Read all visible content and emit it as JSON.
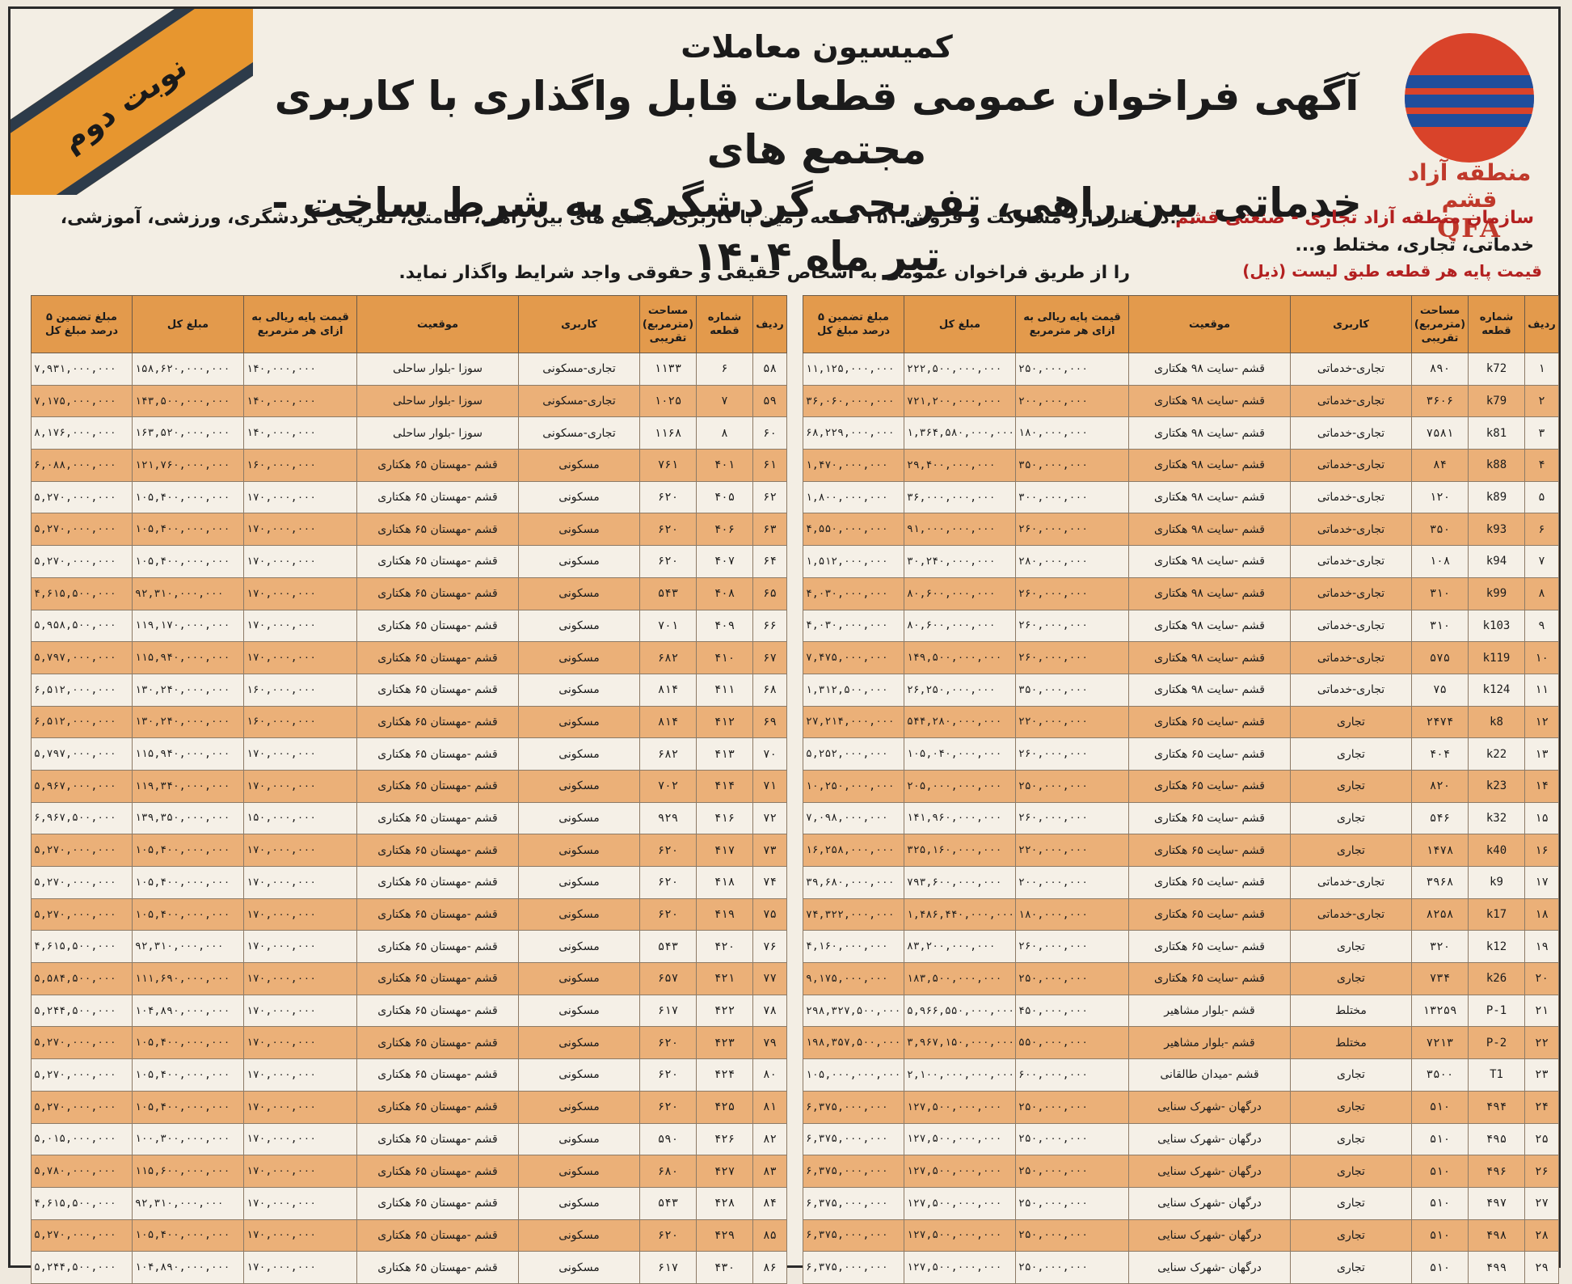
{
  "ribbon_text": "نوبت دوم",
  "logo": {
    "fa": "منطقه آزاد قشم",
    "en": "QFA"
  },
  "header": {
    "commission": "کمیسیون معاملات",
    "title_line1": "آگهی فراخوان عمومی قطعات قابل واگذاری با کاربری مجتمع های",
    "title_line2": "خدماتی بین راهی، تفریحی گردشگری به شرط ساخت - تیر ماه ۱۴۰۴"
  },
  "intro": {
    "org": "سازمان منطقه آزاد تجاری - صنعتی قشم",
    "line1_rest": " در نظر دارد مشارکت و فروش ۳۵۱ قطعه زمین با کاربری مجتمع های بین راهی، اقامتی، تفریحی گردشگری، ورزشی، آموزشی، خدماتی، تجاری، مختلط و...",
    "line2": "را از طریق فراخوان عمومی به اشخاص حقیقی و حقوقی واجد شرایط واگذار نماید."
  },
  "price_note": "قیمت پایه هر قطعه طبق لیست (ذیل)",
  "columns": [
    "ردیف",
    "شماره قطعه",
    "مساحت (مترمربع) تقریبی",
    "کاربری",
    "موقعیت",
    "قیمت پایه ریالی به ازای هر مترمربع",
    "مبلغ کل",
    "مبلغ تضمین ۵ درصد مبلغ کل"
  ],
  "right_table": [
    [
      "۱",
      "k72",
      "۸۹۰",
      "تجاری-خدماتی",
      "قشم -سایت ۹۸ هکتاری",
      "۲۵۰,۰۰۰,۰۰۰",
      "۲۲۲,۵۰۰,۰۰۰,۰۰۰",
      "۱۱,۱۲۵,۰۰۰,۰۰۰"
    ],
    [
      "۲",
      "k79",
      "۳۶۰۶",
      "تجاری-خدماتی",
      "قشم -سایت ۹۸ هکتاری",
      "۲۰۰,۰۰۰,۰۰۰",
      "۷۲۱,۲۰۰,۰۰۰,۰۰۰",
      "۳۶,۰۶۰,۰۰۰,۰۰۰"
    ],
    [
      "۳",
      "k81",
      "۷۵۸۱",
      "تجاری-خدماتی",
      "قشم -سایت ۹۸ هکتاری",
      "۱۸۰,۰۰۰,۰۰۰",
      "۱,۳۶۴,۵۸۰,۰۰۰,۰۰۰",
      "۶۸,۲۲۹,۰۰۰,۰۰۰"
    ],
    [
      "۴",
      "k88",
      "۸۴",
      "تجاری-خدماتی",
      "قشم -سایت ۹۸ هکتاری",
      "۳۵۰,۰۰۰,۰۰۰",
      "۲۹,۴۰۰,۰۰۰,۰۰۰",
      "۱,۴۷۰,۰۰۰,۰۰۰"
    ],
    [
      "۵",
      "k89",
      "۱۲۰",
      "تجاری-خدماتی",
      "قشم -سایت ۹۸ هکتاری",
      "۳۰۰,۰۰۰,۰۰۰",
      "۳۶,۰۰۰,۰۰۰,۰۰۰",
      "۱,۸۰۰,۰۰۰,۰۰۰"
    ],
    [
      "۶",
      "k93",
      "۳۵۰",
      "تجاری-خدماتی",
      "قشم -سایت ۹۸ هکتاری",
      "۲۶۰,۰۰۰,۰۰۰",
      "۹۱,۰۰۰,۰۰۰,۰۰۰",
      "۴,۵۵۰,۰۰۰,۰۰۰"
    ],
    [
      "۷",
      "k94",
      "۱۰۸",
      "تجاری-خدماتی",
      "قشم -سایت ۹۸ هکتاری",
      "۲۸۰,۰۰۰,۰۰۰",
      "۳۰,۲۴۰,۰۰۰,۰۰۰",
      "۱,۵۱۲,۰۰۰,۰۰۰"
    ],
    [
      "۸",
      "k99",
      "۳۱۰",
      "تجاری-خدماتی",
      "قشم -سایت ۹۸ هکتاری",
      "۲۶۰,۰۰۰,۰۰۰",
      "۸۰,۶۰۰,۰۰۰,۰۰۰",
      "۴,۰۳۰,۰۰۰,۰۰۰"
    ],
    [
      "۹",
      "k103",
      "۳۱۰",
      "تجاری-خدماتی",
      "قشم -سایت ۹۸ هکتاری",
      "۲۶۰,۰۰۰,۰۰۰",
      "۸۰,۶۰۰,۰۰۰,۰۰۰",
      "۴,۰۳۰,۰۰۰,۰۰۰"
    ],
    [
      "۱۰",
      "k119",
      "۵۷۵",
      "تجاری-خدماتی",
      "قشم -سایت ۹۸ هکتاری",
      "۲۶۰,۰۰۰,۰۰۰",
      "۱۴۹,۵۰۰,۰۰۰,۰۰۰",
      "۷,۴۷۵,۰۰۰,۰۰۰"
    ],
    [
      "۱۱",
      "k124",
      "۷۵",
      "تجاری-خدماتی",
      "قشم -سایت ۹۸ هکتاری",
      "۳۵۰,۰۰۰,۰۰۰",
      "۲۶,۲۵۰,۰۰۰,۰۰۰",
      "۱,۳۱۲,۵۰۰,۰۰۰"
    ],
    [
      "۱۲",
      "k8",
      "۲۴۷۴",
      "تجاری",
      "قشم -سایت ۶۵ هکتاری",
      "۲۲۰,۰۰۰,۰۰۰",
      "۵۴۴,۲۸۰,۰۰۰,۰۰۰",
      "۲۷,۲۱۴,۰۰۰,۰۰۰"
    ],
    [
      "۱۳",
      "k22",
      "۴۰۴",
      "تجاری",
      "قشم -سایت ۶۵ هکتاری",
      "۲۶۰,۰۰۰,۰۰۰",
      "۱۰۵,۰۴۰,۰۰۰,۰۰۰",
      "۵,۲۵۲,۰۰۰,۰۰۰"
    ],
    [
      "۱۴",
      "k23",
      "۸۲۰",
      "تجاری",
      "قشم -سایت ۶۵ هکتاری",
      "۲۵۰,۰۰۰,۰۰۰",
      "۲۰۵,۰۰۰,۰۰۰,۰۰۰",
      "۱۰,۲۵۰,۰۰۰,۰۰۰"
    ],
    [
      "۱۵",
      "k32",
      "۵۴۶",
      "تجاری",
      "قشم -سایت ۶۵ هکتاری",
      "۲۶۰,۰۰۰,۰۰۰",
      "۱۴۱,۹۶۰,۰۰۰,۰۰۰",
      "۷,۰۹۸,۰۰۰,۰۰۰"
    ],
    [
      "۱۶",
      "k40",
      "۱۴۷۸",
      "تجاری",
      "قشم -سایت ۶۵ هکتاری",
      "۲۲۰,۰۰۰,۰۰۰",
      "۳۲۵,۱۶۰,۰۰۰,۰۰۰",
      "۱۶,۲۵۸,۰۰۰,۰۰۰"
    ],
    [
      "۱۷",
      "k9",
      "۳۹۶۸",
      "تجاری-خدماتی",
      "قشم -سایت ۶۵ هکتاری",
      "۲۰۰,۰۰۰,۰۰۰",
      "۷۹۳,۶۰۰,۰۰۰,۰۰۰",
      "۳۹,۶۸۰,۰۰۰,۰۰۰"
    ],
    [
      "۱۸",
      "k17",
      "۸۲۵۸",
      "تجاری-خدماتی",
      "قشم -سایت ۶۵ هکتاری",
      "۱۸۰,۰۰۰,۰۰۰",
      "۱,۴۸۶,۴۴۰,۰۰۰,۰۰۰",
      "۷۴,۳۲۲,۰۰۰,۰۰۰"
    ],
    [
      "۱۹",
      "k12",
      "۳۲۰",
      "تجاری",
      "قشم -سایت ۶۵ هکتاری",
      "۲۶۰,۰۰۰,۰۰۰",
      "۸۳,۲۰۰,۰۰۰,۰۰۰",
      "۴,۱۶۰,۰۰۰,۰۰۰"
    ],
    [
      "۲۰",
      "k26",
      "۷۳۴",
      "تجاری",
      "قشم -سایت ۶۵ هکتاری",
      "۲۵۰,۰۰۰,۰۰۰",
      "۱۸۳,۵۰۰,۰۰۰,۰۰۰",
      "۹,۱۷۵,۰۰۰,۰۰۰"
    ],
    [
      "۲۱",
      "P-1",
      "۱۳۲۵۹",
      "مختلط",
      "قشم -بلوار مشاهیر",
      "۴۵۰,۰۰۰,۰۰۰",
      "۵,۹۶۶,۵۵۰,۰۰۰,۰۰۰",
      "۲۹۸,۳۲۷,۵۰۰,۰۰۰"
    ],
    [
      "۲۲",
      "P-2",
      "۷۲۱۳",
      "مختلط",
      "قشم -بلوار مشاهیر",
      "۵۵۰,۰۰۰,۰۰۰",
      "۳,۹۶۷,۱۵۰,۰۰۰,۰۰۰",
      "۱۹۸,۳۵۷,۵۰۰,۰۰۰"
    ],
    [
      "۲۳",
      "T1",
      "۳۵۰۰",
      "تجاری",
      "قشم -میدان طالقانی",
      "۶۰۰,۰۰۰,۰۰۰",
      "۲,۱۰۰,۰۰۰,۰۰۰,۰۰۰",
      "۱۰۵,۰۰۰,۰۰۰,۰۰۰"
    ],
    [
      "۲۴",
      "۴۹۴",
      "۵۱۰",
      "تجاری",
      "درگهان -شهرک سنایی",
      "۲۵۰,۰۰۰,۰۰۰",
      "۱۲۷,۵۰۰,۰۰۰,۰۰۰",
      "۶,۳۷۵,۰۰۰,۰۰۰"
    ],
    [
      "۲۵",
      "۴۹۵",
      "۵۱۰",
      "تجاری",
      "درگهان -شهرک سنایی",
      "۲۵۰,۰۰۰,۰۰۰",
      "۱۲۷,۵۰۰,۰۰۰,۰۰۰",
      "۶,۳۷۵,۰۰۰,۰۰۰"
    ],
    [
      "۲۶",
      "۴۹۶",
      "۵۱۰",
      "تجاری",
      "درگهان -شهرک سنایی",
      "۲۵۰,۰۰۰,۰۰۰",
      "۱۲۷,۵۰۰,۰۰۰,۰۰۰",
      "۶,۳۷۵,۰۰۰,۰۰۰"
    ],
    [
      "۲۷",
      "۴۹۷",
      "۵۱۰",
      "تجاری",
      "درگهان -شهرک سنایی",
      "۲۵۰,۰۰۰,۰۰۰",
      "۱۲۷,۵۰۰,۰۰۰,۰۰۰",
      "۶,۳۷۵,۰۰۰,۰۰۰"
    ],
    [
      "۲۸",
      "۴۹۸",
      "۵۱۰",
      "تجاری",
      "درگهان -شهرک سنایی",
      "۲۵۰,۰۰۰,۰۰۰",
      "۱۲۷,۵۰۰,۰۰۰,۰۰۰",
      "۶,۳۷۵,۰۰۰,۰۰۰"
    ],
    [
      "۲۹",
      "۴۹۹",
      "۵۱۰",
      "تجاری",
      "درگهان -شهرک سنایی",
      "۲۵۰,۰۰۰,۰۰۰",
      "۱۲۷,۵۰۰,۰۰۰,۰۰۰",
      "۶,۳۷۵,۰۰۰,۰۰۰"
    ]
  ],
  "left_table": [
    [
      "۵۸",
      "۶",
      "۱۱۳۳",
      "تجاری-مسکونی",
      "سوزا -بلوار ساحلی",
      "۱۴۰,۰۰۰,۰۰۰",
      "۱۵۸,۶۲۰,۰۰۰,۰۰۰",
      "۷,۹۳۱,۰۰۰,۰۰۰"
    ],
    [
      "۵۹",
      "۷",
      "۱۰۲۵",
      "تجاری-مسکونی",
      "سوزا -بلوار ساحلی",
      "۱۴۰,۰۰۰,۰۰۰",
      "۱۴۳,۵۰۰,۰۰۰,۰۰۰",
      "۷,۱۷۵,۰۰۰,۰۰۰"
    ],
    [
      "۶۰",
      "۸",
      "۱۱۶۸",
      "تجاری-مسکونی",
      "سوزا -بلوار ساحلی",
      "۱۴۰,۰۰۰,۰۰۰",
      "۱۶۳,۵۲۰,۰۰۰,۰۰۰",
      "۸,۱۷۶,۰۰۰,۰۰۰"
    ],
    [
      "۶۱",
      "۴۰۱",
      "۷۶۱",
      "مسکونی",
      "قشم -مهستان ۶۵ هکتاری",
      "۱۶۰,۰۰۰,۰۰۰",
      "۱۲۱,۷۶۰,۰۰۰,۰۰۰",
      "۶,۰۸۸,۰۰۰,۰۰۰"
    ],
    [
      "۶۲",
      "۴۰۵",
      "۶۲۰",
      "مسکونی",
      "قشم -مهستان ۶۵ هکتاری",
      "۱۷۰,۰۰۰,۰۰۰",
      "۱۰۵,۴۰۰,۰۰۰,۰۰۰",
      "۵,۲۷۰,۰۰۰,۰۰۰"
    ],
    [
      "۶۳",
      "۴۰۶",
      "۶۲۰",
      "مسکونی",
      "قشم -مهستان ۶۵ هکتاری",
      "۱۷۰,۰۰۰,۰۰۰",
      "۱۰۵,۴۰۰,۰۰۰,۰۰۰",
      "۵,۲۷۰,۰۰۰,۰۰۰"
    ],
    [
      "۶۴",
      "۴۰۷",
      "۶۲۰",
      "مسکونی",
      "قشم -مهستان ۶۵ هکتاری",
      "۱۷۰,۰۰۰,۰۰۰",
      "۱۰۵,۴۰۰,۰۰۰,۰۰۰",
      "۵,۲۷۰,۰۰۰,۰۰۰"
    ],
    [
      "۶۵",
      "۴۰۸",
      "۵۴۳",
      "مسکونی",
      "قشم -مهستان ۶۵ هکتاری",
      "۱۷۰,۰۰۰,۰۰۰",
      "۹۲,۳۱۰,۰۰۰,۰۰۰",
      "۴,۶۱۵,۵۰۰,۰۰۰"
    ],
    [
      "۶۶",
      "۴۰۹",
      "۷۰۱",
      "مسکونی",
      "قشم -مهستان ۶۵ هکتاری",
      "۱۷۰,۰۰۰,۰۰۰",
      "۱۱۹,۱۷۰,۰۰۰,۰۰۰",
      "۵,۹۵۸,۵۰۰,۰۰۰"
    ],
    [
      "۶۷",
      "۴۱۰",
      "۶۸۲",
      "مسکونی",
      "قشم -مهستان ۶۵ هکتاری",
      "۱۷۰,۰۰۰,۰۰۰",
      "۱۱۵,۹۴۰,۰۰۰,۰۰۰",
      "۵,۷۹۷,۰۰۰,۰۰۰"
    ],
    [
      "۶۸",
      "۴۱۱",
      "۸۱۴",
      "مسکونی",
      "قشم -مهستان ۶۵ هکتاری",
      "۱۶۰,۰۰۰,۰۰۰",
      "۱۳۰,۲۴۰,۰۰۰,۰۰۰",
      "۶,۵۱۲,۰۰۰,۰۰۰"
    ],
    [
      "۶۹",
      "۴۱۲",
      "۸۱۴",
      "مسکونی",
      "قشم -مهستان ۶۵ هکتاری",
      "۱۶۰,۰۰۰,۰۰۰",
      "۱۳۰,۲۴۰,۰۰۰,۰۰۰",
      "۶,۵۱۲,۰۰۰,۰۰۰"
    ],
    [
      "۷۰",
      "۴۱۳",
      "۶۸۲",
      "مسکونی",
      "قشم -مهستان ۶۵ هکتاری",
      "۱۷۰,۰۰۰,۰۰۰",
      "۱۱۵,۹۴۰,۰۰۰,۰۰۰",
      "۵,۷۹۷,۰۰۰,۰۰۰"
    ],
    [
      "۷۱",
      "۴۱۴",
      "۷۰۲",
      "مسکونی",
      "قشم -مهستان ۶۵ هکتاری",
      "۱۷۰,۰۰۰,۰۰۰",
      "۱۱۹,۳۴۰,۰۰۰,۰۰۰",
      "۵,۹۶۷,۰۰۰,۰۰۰"
    ],
    [
      "۷۲",
      "۴۱۶",
      "۹۲۹",
      "مسکونی",
      "قشم -مهستان ۶۵ هکتاری",
      "۱۵۰,۰۰۰,۰۰۰",
      "۱۳۹,۳۵۰,۰۰۰,۰۰۰",
      "۶,۹۶۷,۵۰۰,۰۰۰"
    ],
    [
      "۷۳",
      "۴۱۷",
      "۶۲۰",
      "مسکونی",
      "قشم -مهستان ۶۵ هکتاری",
      "۱۷۰,۰۰۰,۰۰۰",
      "۱۰۵,۴۰۰,۰۰۰,۰۰۰",
      "۵,۲۷۰,۰۰۰,۰۰۰"
    ],
    [
      "۷۴",
      "۴۱۸",
      "۶۲۰",
      "مسکونی",
      "قشم -مهستان ۶۵ هکتاری",
      "۱۷۰,۰۰۰,۰۰۰",
      "۱۰۵,۴۰۰,۰۰۰,۰۰۰",
      "۵,۲۷۰,۰۰۰,۰۰۰"
    ],
    [
      "۷۵",
      "۴۱۹",
      "۶۲۰",
      "مسکونی",
      "قشم -مهستان ۶۵ هکتاری",
      "۱۷۰,۰۰۰,۰۰۰",
      "۱۰۵,۴۰۰,۰۰۰,۰۰۰",
      "۵,۲۷۰,۰۰۰,۰۰۰"
    ],
    [
      "۷۶",
      "۴۲۰",
      "۵۴۳",
      "مسکونی",
      "قشم -مهستان ۶۵ هکتاری",
      "۱۷۰,۰۰۰,۰۰۰",
      "۹۲,۳۱۰,۰۰۰,۰۰۰",
      "۴,۶۱۵,۵۰۰,۰۰۰"
    ],
    [
      "۷۷",
      "۴۲۱",
      "۶۵۷",
      "مسکونی",
      "قشم -مهستان ۶۵ هکتاری",
      "۱۷۰,۰۰۰,۰۰۰",
      "۱۱۱,۶۹۰,۰۰۰,۰۰۰",
      "۵,۵۸۴,۵۰۰,۰۰۰"
    ],
    [
      "۷۸",
      "۴۲۲",
      "۶۱۷",
      "مسکونی",
      "قشم -مهستان ۶۵ هکتاری",
      "۱۷۰,۰۰۰,۰۰۰",
      "۱۰۴,۸۹۰,۰۰۰,۰۰۰",
      "۵,۲۴۴,۵۰۰,۰۰۰"
    ],
    [
      "۷۹",
      "۴۲۳",
      "۶۲۰",
      "مسکونی",
      "قشم -مهستان ۶۵ هکتاری",
      "۱۷۰,۰۰۰,۰۰۰",
      "۱۰۵,۴۰۰,۰۰۰,۰۰۰",
      "۵,۲۷۰,۰۰۰,۰۰۰"
    ],
    [
      "۸۰",
      "۴۲۴",
      "۶۲۰",
      "مسکونی",
      "قشم -مهستان ۶۵ هکتاری",
      "۱۷۰,۰۰۰,۰۰۰",
      "۱۰۵,۴۰۰,۰۰۰,۰۰۰",
      "۵,۲۷۰,۰۰۰,۰۰۰"
    ],
    [
      "۸۱",
      "۴۲۵",
      "۶۲۰",
      "مسکونی",
      "قشم -مهستان ۶۵ هکتاری",
      "۱۷۰,۰۰۰,۰۰۰",
      "۱۰۵,۴۰۰,۰۰۰,۰۰۰",
      "۵,۲۷۰,۰۰۰,۰۰۰"
    ],
    [
      "۸۲",
      "۴۲۶",
      "۵۹۰",
      "مسکونی",
      "قشم -مهستان ۶۵ هکتاری",
      "۱۷۰,۰۰۰,۰۰۰",
      "۱۰۰,۳۰۰,۰۰۰,۰۰۰",
      "۵,۰۱۵,۰۰۰,۰۰۰"
    ],
    [
      "۸۳",
      "۴۲۷",
      "۶۸۰",
      "مسکونی",
      "قشم -مهستان ۶۵ هکتاری",
      "۱۷۰,۰۰۰,۰۰۰",
      "۱۱۵,۶۰۰,۰۰۰,۰۰۰",
      "۵,۷۸۰,۰۰۰,۰۰۰"
    ],
    [
      "۸۴",
      "۴۲۸",
      "۵۴۳",
      "مسکونی",
      "قشم -مهستان ۶۵ هکتاری",
      "۱۷۰,۰۰۰,۰۰۰",
      "۹۲,۳۱۰,۰۰۰,۰۰۰",
      "۴,۶۱۵,۵۰۰,۰۰۰"
    ],
    [
      "۸۵",
      "۴۲۹",
      "۶۲۰",
      "مسکونی",
      "قشم -مهستان ۶۵ هکتاری",
      "۱۷۰,۰۰۰,۰۰۰",
      "۱۰۵,۴۰۰,۰۰۰,۰۰۰",
      "۵,۲۷۰,۰۰۰,۰۰۰"
    ],
    [
      "۸۶",
      "۴۳۰",
      "۶۱۷",
      "مسکونی",
      "قشم -مهستان ۶۵ هکتاری",
      "۱۷۰,۰۰۰,۰۰۰",
      "۱۰۴,۸۹۰,۰۰۰,۰۰۰",
      "۵,۲۴۴,۵۰۰,۰۰۰"
    ]
  ]
}
